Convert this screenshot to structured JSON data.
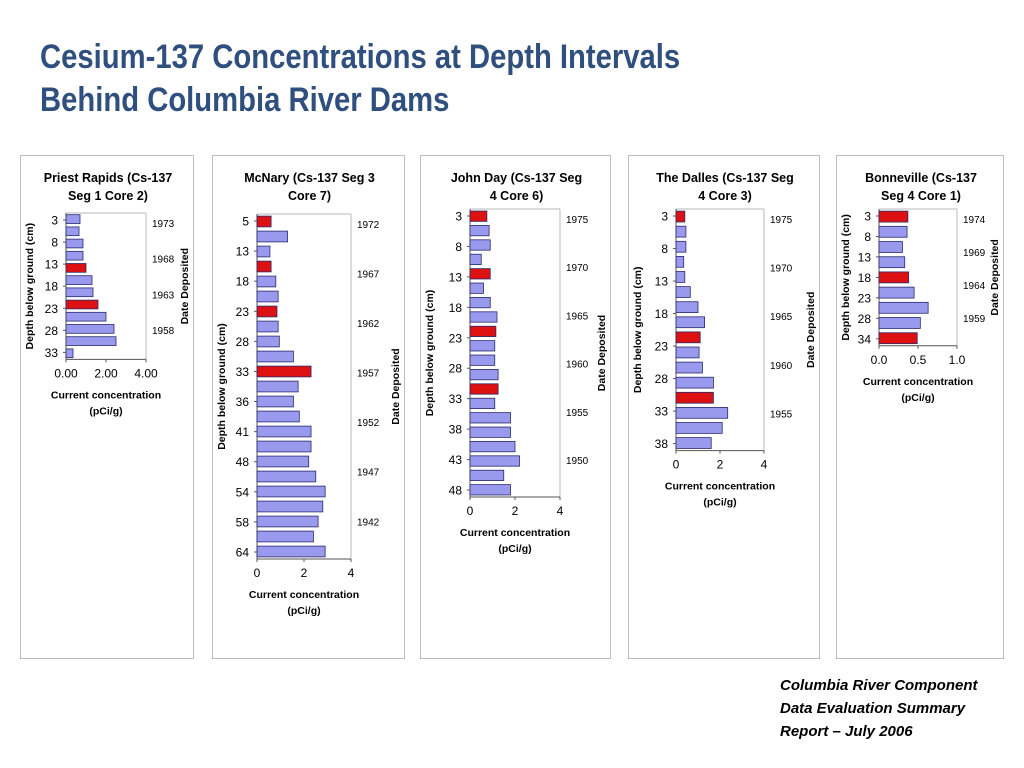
{
  "slide": {
    "title_lines": [
      "Cesium-137 Concentrations at Depth Intervals",
      "Behind Columbia River Dams"
    ],
    "citation_lines": [
      "Columbia River Component",
      "Data Evaluation Summary",
      "Report – July 2006"
    ]
  },
  "colors": {
    "bar": "#9999ee",
    "highlight_bar": "#dd1111",
    "bar_stroke": "#2a2a6e",
    "title": "#2f4f7f"
  },
  "chart_data": [
    {
      "type": "bar",
      "orientation": "horizontal",
      "title_lines": [
        "Priest Rapids (Cs-137",
        "Seg 1 Core 2)"
      ],
      "ylabel": "Depth below ground (cm)",
      "right_label": "Date Deposited",
      "xlabel_lines": [
        "Current concentration",
        "(pCi/g)"
      ],
      "xlim": [
        0,
        4
      ],
      "x_ticks": [
        "0.00",
        "2.00",
        "4.00"
      ],
      "depth_labels": [
        "3",
        "8",
        "13",
        "18",
        "23",
        "28",
        "33"
      ],
      "date_labels": [
        "1973",
        "1968",
        "1963",
        "1958"
      ],
      "values": [
        0.7,
        0.65,
        0.85,
        0.85,
        1.0,
        1.3,
        1.35,
        1.6,
        2.0,
        2.4,
        2.5,
        0.35
      ],
      "highlighted": [
        4,
        7
      ]
    },
    {
      "type": "bar",
      "orientation": "horizontal",
      "title_lines": [
        "McNary (Cs-137 Seg 3",
        "Core 7)"
      ],
      "ylabel": "Depth below ground (cm)",
      "right_label": "Date Deposited",
      "xlabel_lines": [
        "Current concentration",
        "(pCi/g)"
      ],
      "xlim": [
        0,
        4
      ],
      "x_ticks": [
        "0",
        "2",
        "4"
      ],
      "depth_labels": [
        "5",
        "13",
        "18",
        "23",
        "28",
        "33",
        "36",
        "41",
        "48",
        "54",
        "58",
        "64"
      ],
      "date_labels": [
        "1972",
        "1967",
        "1962",
        "1957",
        "1952",
        "1947",
        "1942"
      ],
      "values": [
        0.6,
        1.3,
        0.55,
        0.6,
        0.8,
        0.9,
        0.85,
        0.9,
        0.95,
        1.55,
        2.3,
        1.75,
        1.55,
        1.8,
        2.3,
        2.3,
        2.2,
        2.5,
        2.9,
        2.8,
        2.6,
        2.4,
        2.9
      ],
      "highlighted": [
        0,
        3,
        6,
        10
      ]
    },
    {
      "type": "bar",
      "orientation": "horizontal",
      "title_lines": [
        "John Day (Cs-137 Seg",
        "4 Core 6)"
      ],
      "ylabel": "Depth below ground (cm)",
      "right_label": "Date Deposited",
      "xlabel_lines": [
        "Current concentration",
        "(pCi/g)"
      ],
      "xlim": [
        0,
        4
      ],
      "x_ticks": [
        "0",
        "2",
        "4"
      ],
      "depth_labels": [
        "3",
        "8",
        "13",
        "18",
        "23",
        "28",
        "33",
        "38",
        "43",
        "48"
      ],
      "date_labels": [
        "1975",
        "1970",
        "1965",
        "1960",
        "1955",
        "1950"
      ],
      "values": [
        0.75,
        0.85,
        0.9,
        0.5,
        0.9,
        0.6,
        0.9,
        1.2,
        1.15,
        1.1,
        1.1,
        1.25,
        1.25,
        1.1,
        1.8,
        1.8,
        2.0,
        2.2,
        1.5,
        1.8
      ],
      "highlighted": [
        0,
        4,
        8,
        12
      ]
    },
    {
      "type": "bar",
      "orientation": "horizontal",
      "title_lines": [
        "The Dalles (Cs-137 Seg",
        "4 Core 3)"
      ],
      "ylabel": "Depth below ground (cm)",
      "right_label": "Date Deposited",
      "xlabel_lines": [
        "Current concentration",
        "(pCi/g)"
      ],
      "xlim": [
        0,
        4
      ],
      "x_ticks": [
        "0",
        "2",
        "4"
      ],
      "depth_labels": [
        "3",
        "8",
        "13",
        "18",
        "23",
        "28",
        "33",
        "38"
      ],
      "date_labels": [
        "1975",
        "1970",
        "1965",
        "1960",
        "1955"
      ],
      "values": [
        0.4,
        0.45,
        0.45,
        0.35,
        0.4,
        0.65,
        1.0,
        1.3,
        1.1,
        1.05,
        1.2,
        1.7,
        1.7,
        2.35,
        2.1,
        1.6
      ],
      "highlighted": [
        0,
        8,
        12
      ]
    },
    {
      "type": "bar",
      "orientation": "horizontal",
      "title_lines": [
        "Bonneville (Cs-137",
        "Seg 4 Core 1)"
      ],
      "ylabel": "Depth below ground (cm)",
      "right_label": "Date Deposited",
      "xlabel_lines": [
        "Current concentration",
        "(pCi/g)"
      ],
      "xlim": [
        0,
        1
      ],
      "x_ticks": [
        "0.0",
        "0.5",
        "1.0"
      ],
      "depth_labels": [
        "3",
        "8",
        "13",
        "18",
        "23",
        "28",
        "34"
      ],
      "date_labels": [
        "1974",
        "1969",
        "1964",
        "1959"
      ],
      "values": [
        0.37,
        0.36,
        0.3,
        0.33,
        0.38,
        0.45,
        0.63,
        0.53,
        0.49
      ],
      "highlighted": [
        0,
        4,
        8
      ]
    }
  ]
}
